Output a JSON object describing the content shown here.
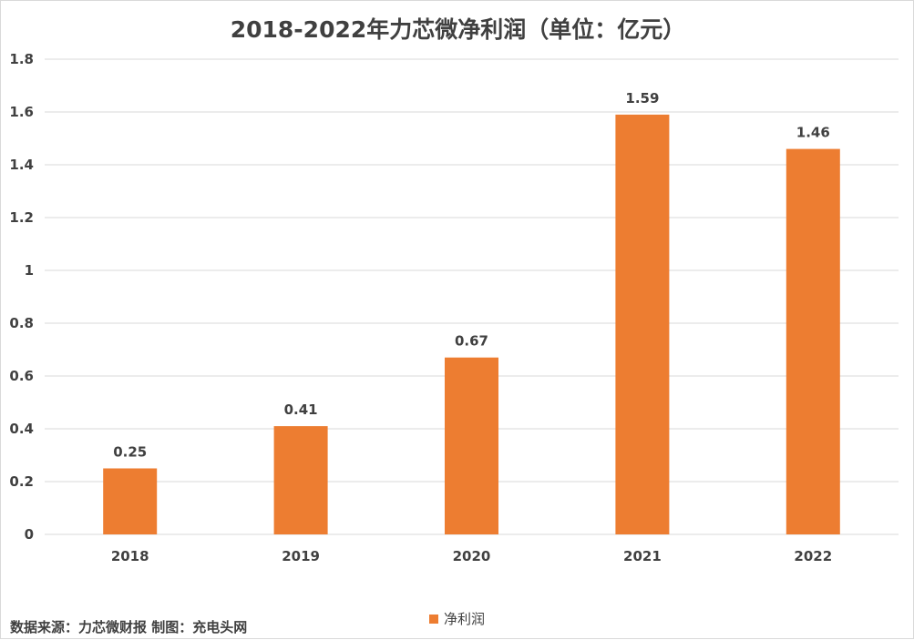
{
  "chart_data": {
    "type": "bar",
    "title": "2018-2022年力芯微净利润（单位：亿元）",
    "categories": [
      "2018",
      "2019",
      "2020",
      "2021",
      "2022"
    ],
    "series": [
      {
        "name": "净利润",
        "values": [
          0.25,
          0.41,
          0.67,
          1.59,
          1.46
        ],
        "color": "#ED7D31"
      }
    ],
    "data_labels": [
      "0.25",
      "0.41",
      "0.67",
      "1.59",
      "1.46"
    ],
    "ylim": [
      0,
      1.8
    ],
    "yticks": [
      "0",
      "0.2",
      "0.4",
      "0.6",
      "0.8",
      "1",
      "1.2",
      "1.4",
      "1.6",
      "1.8"
    ],
    "grid": true,
    "legend_position": "bottom"
  },
  "source_note": "数据来源：力芯微财报  制图：充电头网",
  "colors": {
    "bar": "#ED7D31",
    "grid": "#d9d9d9",
    "text": "#404040"
  }
}
